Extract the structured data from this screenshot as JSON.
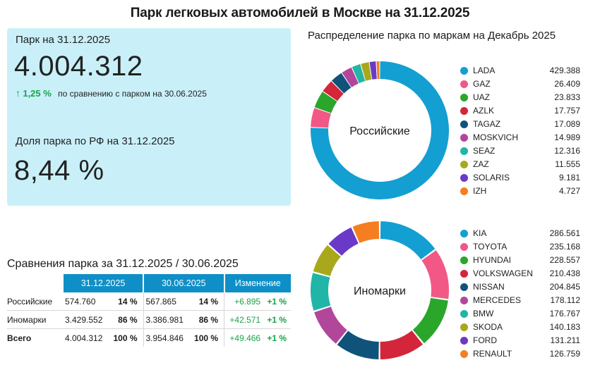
{
  "title": "Парк легковых автомобилей в Москве на 31.12.2025",
  "kpi": {
    "park_label": "Парк на 31.12.2025",
    "park_value": "4.004.312",
    "change_arrow": "↑",
    "change_pct": "1,25 %",
    "change_text": "по сравнению с парком на 30.06.2025",
    "share_label": "Доля парка по РФ на 31.12.2025",
    "share_value": "8,44 %"
  },
  "comparison": {
    "title": "Сравнения парка за 31.12.2025 / 30.06.2025",
    "headers": [
      "31.12.2025",
      "30.06.2025",
      "Изменение"
    ],
    "rows": [
      {
        "name": "Российские",
        "v1": "574.760",
        "p1": "14 %",
        "v2": "567.865",
        "p2": "14 %",
        "chg": "+6.895",
        "chgp": "+1 %"
      },
      {
        "name": "Иномарки",
        "v1": "3.429.552",
        "p1": "86 %",
        "v2": "3.386.981",
        "p2": "86 %",
        "chg": "+42.571",
        "chgp": "+1 %"
      },
      {
        "name": "Всего",
        "v1": "4.004.312",
        "p1": "100 %",
        "v2": "3.954.846",
        "p2": "100 %",
        "chg": "+49.466",
        "chgp": "+1 %"
      }
    ]
  },
  "chart_data": [
    {
      "type": "pie",
      "title": "Распределение парка по маркам на Декабрь 2025",
      "center_label": "Российские",
      "legend": "right",
      "categories": [
        "LADA",
        "GAZ",
        "UAZ",
        "AZLK",
        "TAGAZ",
        "MOSKVICH",
        "SEAZ",
        "ZAZ",
        "SOLARIS",
        "IZH"
      ],
      "values": [
        429388,
        26409,
        23833,
        17757,
        17089,
        14989,
        12316,
        11555,
        9181,
        4727
      ],
      "value_labels": [
        "429.388",
        "26.409",
        "23.833",
        "17.757",
        "17.089",
        "14.989",
        "12.316",
        "11.555",
        "9.181",
        "4.727"
      ],
      "colors": [
        "#139fd2",
        "#f25886",
        "#2aa62a",
        "#d3263a",
        "#10537a",
        "#b2469a",
        "#21b5a8",
        "#a9a81c",
        "#6b39c8",
        "#f57e20"
      ]
    },
    {
      "type": "pie",
      "center_label": "Иномарки",
      "legend": "right",
      "categories": [
        "KIA",
        "TOYOTA",
        "HYUNDAI",
        "VOLKSWAGEN",
        "NISSAN",
        "MERCEDES",
        "BMW",
        "SKODA",
        "FORD",
        "RENAULT"
      ],
      "values": [
        286561,
        235168,
        228557,
        210438,
        204845,
        178112,
        176767,
        140183,
        131211,
        126759
      ],
      "value_labels": [
        "286.561",
        "235.168",
        "228.557",
        "210.438",
        "204.845",
        "178.112",
        "176.767",
        "140.183",
        "131.211",
        "126.759"
      ],
      "colors": [
        "#139fd2",
        "#f25886",
        "#2aa62a",
        "#d3263a",
        "#10537a",
        "#b2469a",
        "#21b5a8",
        "#a9a81c",
        "#6b39c8",
        "#f57e20"
      ]
    }
  ]
}
